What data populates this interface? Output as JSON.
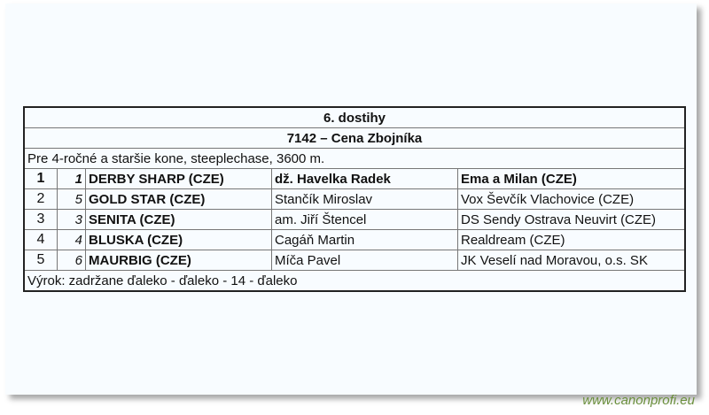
{
  "race": {
    "title": "6. dostihy",
    "name": "7142 – Cena Zbojníka",
    "conditions": "Pre 4-ročné a staršie kone, steeplechase, 3600 m.",
    "results": [
      {
        "place": "1",
        "number": "1",
        "horse": "DERBY SHARP (CZE)",
        "jockey": "dž. Havelka Radek",
        "owner": "Ema a Milan (CZE)"
      },
      {
        "place": "2",
        "number": "5",
        "horse": "GOLD STAR (CZE)",
        "jockey": "Stančík Miroslav",
        "owner": "Vox Ševčík Vlachovice (CZE)"
      },
      {
        "place": "3",
        "number": "3",
        "horse": "SENITA (CZE)",
        "jockey": "am. Jiří Štencel",
        "owner": "DS Sendy Ostrava Neuvirt (CZE)"
      },
      {
        "place": "4",
        "number": "4",
        "horse": "BLUSKA (CZE)",
        "jockey": "Cagáň Martin",
        "owner": "Realdream (CZE)"
      },
      {
        "place": "5",
        "number": "6",
        "horse": "MAURBIG (CZE)",
        "jockey": "Míča Pavel",
        "owner": "JK Veselí nad Moravou, o.s. SK"
      }
    ],
    "verdict": "Výrok: zadržane ďaleko - ďaleko - 14 - ďaleko"
  },
  "watermark": "www.canonprofi.eu"
}
